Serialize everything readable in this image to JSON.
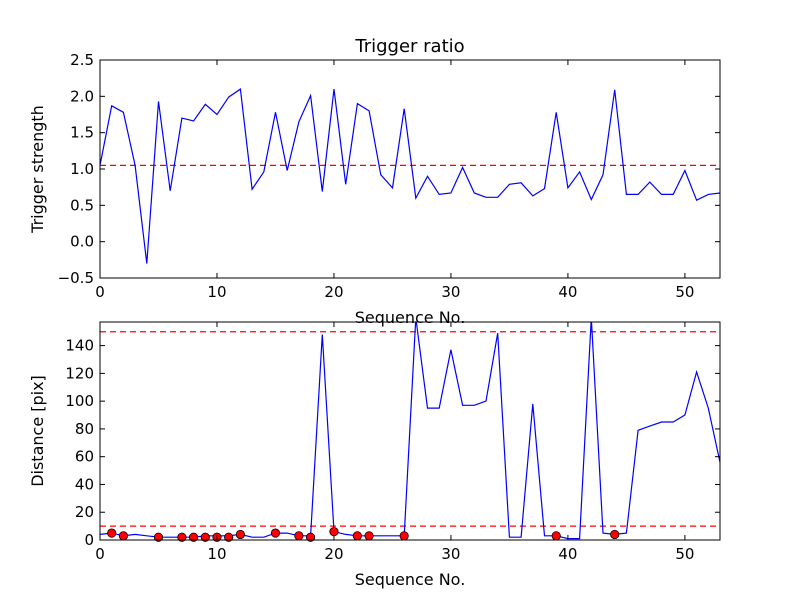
{
  "chart_data": [
    {
      "type": "line",
      "title": "Trigger ratio",
      "xlabel": "Sequence No.",
      "ylabel": "Trigger strength",
      "xlim": [
        0,
        53
      ],
      "ylim": [
        -0.5,
        2.5
      ],
      "xticks": [
        0,
        10,
        20,
        30,
        40,
        50
      ],
      "yticks": [
        -0.5,
        0.0,
        0.5,
        1.0,
        1.5,
        2.0,
        2.5
      ],
      "ytick_labels": [
        "−0.5",
        "0.0",
        "0.5",
        "1.0",
        "1.5",
        "2.0",
        "2.5"
      ],
      "grid": false,
      "series": [
        {
          "color": "#0000ff",
          "x": [
            0,
            1,
            2,
            3,
            4,
            5,
            6,
            7,
            8,
            9,
            10,
            11,
            12,
            13,
            14,
            15,
            16,
            17,
            18,
            19,
            20,
            21,
            22,
            23,
            24,
            25,
            26,
            27,
            28,
            29,
            30,
            31,
            32,
            33,
            34,
            35,
            36,
            37,
            38,
            39,
            40,
            41,
            42,
            43,
            44,
            45,
            46,
            47,
            48,
            49,
            50,
            51,
            52,
            53
          ],
          "values": [
            1.05,
            1.87,
            1.78,
            1.05,
            -0.3,
            1.93,
            0.7,
            1.7,
            1.66,
            1.89,
            1.75,
            1.99,
            2.1,
            0.72,
            0.96,
            1.78,
            0.98,
            1.65,
            2.01,
            0.69,
            2.1,
            0.79,
            1.9,
            1.8,
            0.92,
            0.74,
            1.83,
            0.6,
            0.9,
            0.65,
            0.67,
            1.02,
            0.67,
            0.61,
            0.61,
            0.79,
            0.81,
            0.63,
            0.73,
            1.78,
            0.74,
            0.96,
            0.58,
            0.92,
            2.09,
            0.65,
            0.65,
            0.82,
            0.65,
            0.65,
            0.98,
            0.57,
            0.65,
            0.67
          ]
        }
      ],
      "hlines": [
        {
          "y": 1.05,
          "color": "#ff0000",
          "style": "dashed"
        }
      ]
    },
    {
      "type": "line",
      "title": "",
      "xlabel": "Sequence No.",
      "ylabel": "Distance [pix]",
      "xlim": [
        0,
        53
      ],
      "ylim": [
        0,
        157
      ],
      "xticks": [
        0,
        10,
        20,
        30,
        40,
        50
      ],
      "yticks": [
        0,
        20,
        40,
        60,
        80,
        100,
        120,
        140
      ],
      "ytick_labels": [
        "0",
        "20",
        "40",
        "60",
        "80",
        "100",
        "120",
        "140"
      ],
      "grid": false,
      "series": [
        {
          "color": "#0000ff",
          "x": [
            0,
            1,
            2,
            3,
            4,
            5,
            6,
            7,
            8,
            9,
            10,
            11,
            12,
            13,
            14,
            15,
            16,
            17,
            18,
            19,
            20,
            21,
            22,
            23,
            24,
            25,
            26,
            27,
            28,
            29,
            30,
            31,
            32,
            33,
            34,
            35,
            36,
            37,
            38,
            39,
            40,
            41,
            42,
            43,
            44,
            45,
            46,
            47,
            48,
            49,
            50,
            51,
            52,
            53
          ],
          "values": [
            4,
            5,
            3,
            4,
            3,
            2,
            2,
            2,
            2,
            3,
            3,
            3,
            4,
            2,
            2,
            5,
            5,
            3,
            3,
            148,
            6,
            4,
            3,
            3,
            3,
            3,
            3,
            160,
            95,
            95,
            137,
            97,
            97,
            100,
            149,
            2,
            2,
            98,
            3,
            3,
            1,
            1,
            160,
            5,
            4,
            5,
            79,
            82,
            85,
            85,
            90,
            121,
            95,
            56
          ]
        }
      ],
      "markers": {
        "color": "#ff0000",
        "x": [
          1,
          2,
          5,
          7,
          8,
          9,
          10,
          11,
          12,
          15,
          17,
          18,
          20,
          22,
          23,
          26,
          39,
          44
        ],
        "values": [
          5,
          3,
          2,
          2,
          2,
          2,
          2,
          2,
          4,
          5,
          3,
          2,
          6,
          3,
          3,
          3,
          3,
          4
        ]
      },
      "hlines": [
        {
          "y": 150,
          "color": "#ff0000",
          "style": "dashed"
        },
        {
          "y": 10,
          "color": "#ff0000",
          "style": "dashed"
        }
      ]
    }
  ]
}
